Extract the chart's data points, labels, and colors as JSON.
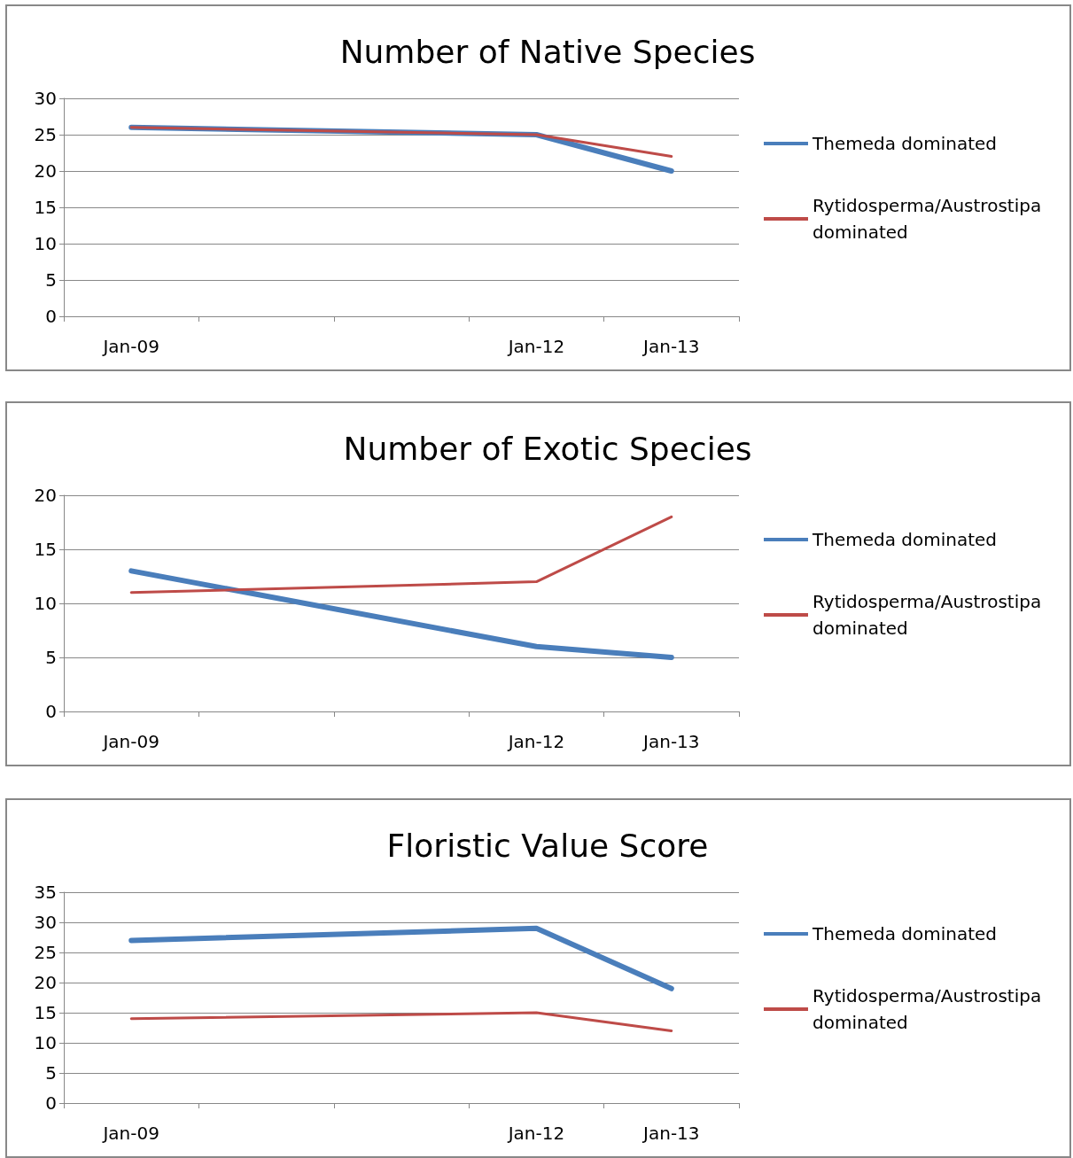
{
  "chart_data": [
    {
      "type": "line",
      "title": "Number of Native Species",
      "categories": [
        "Jan-09",
        null,
        null,
        "Jan-12",
        "Jan-13"
      ],
      "series": [
        {
          "name": "Themeda dominated",
          "color": "#4a7ebb",
          "values": [
            26,
            null,
            null,
            25,
            20
          ]
        },
        {
          "name": "Rytidosperma/Austrostipa dominated",
          "color": "#be4b48",
          "values": [
            26,
            null,
            null,
            25,
            22
          ]
        }
      ],
      "ylim": [
        0,
        30
      ],
      "yticks": [
        0,
        5,
        10,
        15,
        20,
        25,
        30
      ],
      "grid": "y",
      "legend": "right",
      "marker": "none",
      "line_style": "solid"
    },
    {
      "type": "line",
      "title": "Number of Exotic Species",
      "categories": [
        "Jan-09",
        null,
        null,
        "Jan-12",
        "Jan-13"
      ],
      "series": [
        {
          "name": "Themeda dominated",
          "color": "#4a7ebb",
          "values": [
            13,
            null,
            null,
            6,
            5
          ]
        },
        {
          "name": "Rytidosperma/Austrostipa dominated",
          "color": "#be4b48",
          "values": [
            11,
            null,
            null,
            12,
            18
          ]
        }
      ],
      "ylim": [
        0,
        20
      ],
      "yticks": [
        0,
        5,
        10,
        15,
        20
      ],
      "grid": "y",
      "legend": "right",
      "marker": "none",
      "line_style": "solid"
    },
    {
      "type": "line",
      "title": "Floristic Value Score",
      "categories": [
        "Jan-09",
        null,
        null,
        "Jan-12",
        "Jan-13"
      ],
      "series": [
        {
          "name": "Themeda dominated",
          "color": "#4a7ebb",
          "values": [
            27,
            null,
            null,
            29,
            19
          ]
        },
        {
          "name": "Rytidosperma/Austrostipa dominated",
          "color": "#be4b48",
          "values": [
            14,
            null,
            null,
            15,
            12
          ]
        }
      ],
      "ylim": [
        0,
        35
      ],
      "yticks": [
        0,
        5,
        10,
        15,
        20,
        25,
        30,
        35
      ],
      "grid": "y",
      "legend": "right",
      "marker": "none",
      "line_style": "solid"
    }
  ]
}
